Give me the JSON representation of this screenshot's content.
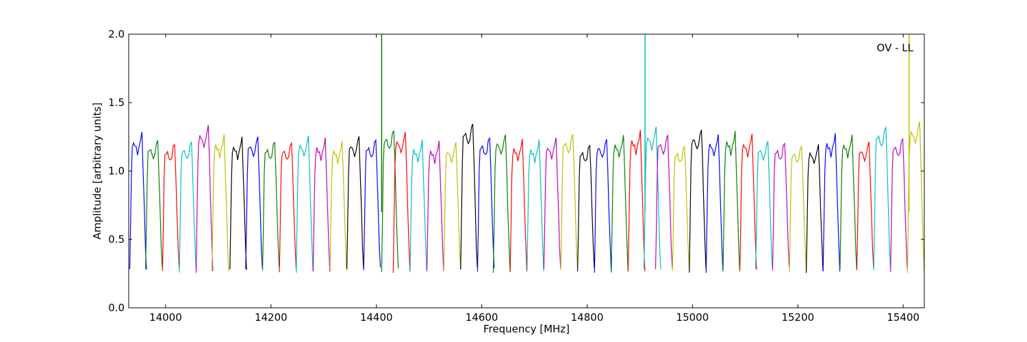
{
  "chart_data": {
    "type": "line",
    "title": "",
    "xlabel": "Frequency [MHz]",
    "ylabel": "Amplitude [arbitrary units]",
    "annotation": "OV - LL",
    "annotation_position": "top-right",
    "xlim": [
      13930,
      15440
    ],
    "ylim": [
      0.0,
      2.0
    ],
    "xticks": [
      14000,
      14200,
      14400,
      14600,
      14800,
      15000,
      15200,
      15400
    ],
    "yticks": [
      0.0,
      0.5,
      1.0,
      1.5,
      2.0
    ],
    "xtick_labels": [
      "14000",
      "14200",
      "14400",
      "14600",
      "14800",
      "15000",
      "15200",
      "15400"
    ],
    "ytick_labels": [
      "0.0",
      "0.5",
      "1.0",
      "1.5",
      "2.0"
    ],
    "grid": false,
    "legend": "none",
    "color_cycle": [
      "#0000ff",
      "#008000",
      "#ff0000",
      "#00bfbf",
      "#bf00bf",
      "#bfbf00",
      "#000000"
    ],
    "band_width_mhz": 32,
    "bands": [
      {
        "start": 13932,
        "peak": 1.3,
        "color": "#0000ff"
      },
      {
        "start": 13962,
        "peak": 1.24,
        "color": "#008000"
      },
      {
        "start": 13994,
        "peak": 1.21,
        "color": "#ff0000"
      },
      {
        "start": 14026,
        "peak": 1.23,
        "color": "#00bfbf"
      },
      {
        "start": 14058,
        "peak": 1.37,
        "color": "#bf00bf"
      },
      {
        "start": 14088,
        "peak": 1.27,
        "color": "#bfbf00"
      },
      {
        "start": 14122,
        "peak": 1.25,
        "color": "#000000"
      },
      {
        "start": 14152,
        "peak": 1.27,
        "color": "#0000ff"
      },
      {
        "start": 14184,
        "peak": 1.23,
        "color": "#008000"
      },
      {
        "start": 14216,
        "peak": 1.22,
        "color": "#ff0000"
      },
      {
        "start": 14248,
        "peak": 1.27,
        "color": "#00bfbf"
      },
      {
        "start": 14280,
        "peak": 1.24,
        "color": "#bf00bf"
      },
      {
        "start": 14312,
        "peak": 1.21,
        "color": "#bfbf00"
      },
      {
        "start": 14344,
        "peak": 1.27,
        "color": "#000000"
      },
      {
        "start": 14376,
        "peak": 1.25,
        "color": "#0000ff"
      },
      {
        "start": 14410,
        "peak": 1.34,
        "color": "#008000"
      },
      {
        "start": 14432,
        "peak": 1.31,
        "color": "#ff0000"
      },
      {
        "start": 14464,
        "peak": 1.22,
        "color": "#00bfbf"
      },
      {
        "start": 14496,
        "peak": 1.21,
        "color": "#bf00bf"
      },
      {
        "start": 14528,
        "peak": 1.21,
        "color": "#bfbf00"
      },
      {
        "start": 14560,
        "peak": 1.4,
        "color": "#000000"
      },
      {
        "start": 14592,
        "peak": 1.27,
        "color": "#0000ff"
      },
      {
        "start": 14622,
        "peak": 1.29,
        "color": "#008000"
      },
      {
        "start": 14654,
        "peak": 1.23,
        "color": "#ff0000"
      },
      {
        "start": 14686,
        "peak": 1.22,
        "color": "#00bfbf"
      },
      {
        "start": 14718,
        "peak": 1.25,
        "color": "#bf00bf"
      },
      {
        "start": 14750,
        "peak": 1.3,
        "color": "#bfbf00"
      },
      {
        "start": 14782,
        "peak": 1.2,
        "color": "#000000"
      },
      {
        "start": 14814,
        "peak": 1.25,
        "color": "#0000ff"
      },
      {
        "start": 14846,
        "peak": 1.27,
        "color": "#008000"
      },
      {
        "start": 14878,
        "peak": 1.31,
        "color": "#ff0000"
      },
      {
        "start": 14908,
        "peak": 1.35,
        "color": "#00bfbf"
      },
      {
        "start": 14930,
        "peak": 1.29,
        "color": "#bf00bf"
      },
      {
        "start": 14962,
        "peak": 1.19,
        "color": "#bfbf00"
      },
      {
        "start": 14994,
        "peak": 1.34,
        "color": "#000000"
      },
      {
        "start": 15026,
        "peak": 1.28,
        "color": "#0000ff"
      },
      {
        "start": 15058,
        "peak": 1.3,
        "color": "#008000"
      },
      {
        "start": 15090,
        "peak": 1.28,
        "color": "#ff0000"
      },
      {
        "start": 15120,
        "peak": 1.23,
        "color": "#00bfbf"
      },
      {
        "start": 15152,
        "peak": 1.22,
        "color": "#bf00bf"
      },
      {
        "start": 15184,
        "peak": 1.19,
        "color": "#bfbf00"
      },
      {
        "start": 15216,
        "peak": 1.19,
        "color": "#000000"
      },
      {
        "start": 15248,
        "peak": 1.28,
        "color": "#0000ff"
      },
      {
        "start": 15280,
        "peak": 1.27,
        "color": "#008000"
      },
      {
        "start": 15312,
        "peak": 1.22,
        "color": "#ff0000"
      },
      {
        "start": 15344,
        "peak": 1.37,
        "color": "#00bfbf"
      },
      {
        "start": 15376,
        "peak": 1.26,
        "color": "#bf00bf"
      },
      {
        "start": 15408,
        "peak": 1.41,
        "color": "#bfbf00"
      }
    ],
    "spikes": [
      {
        "x": 14410,
        "y": 2.0,
        "color": "#008000"
      },
      {
        "x": 14910,
        "y": 2.0,
        "color": "#00bfbf"
      },
      {
        "x": 15411,
        "y": 2.0,
        "color": "#bfbf00"
      }
    ]
  }
}
